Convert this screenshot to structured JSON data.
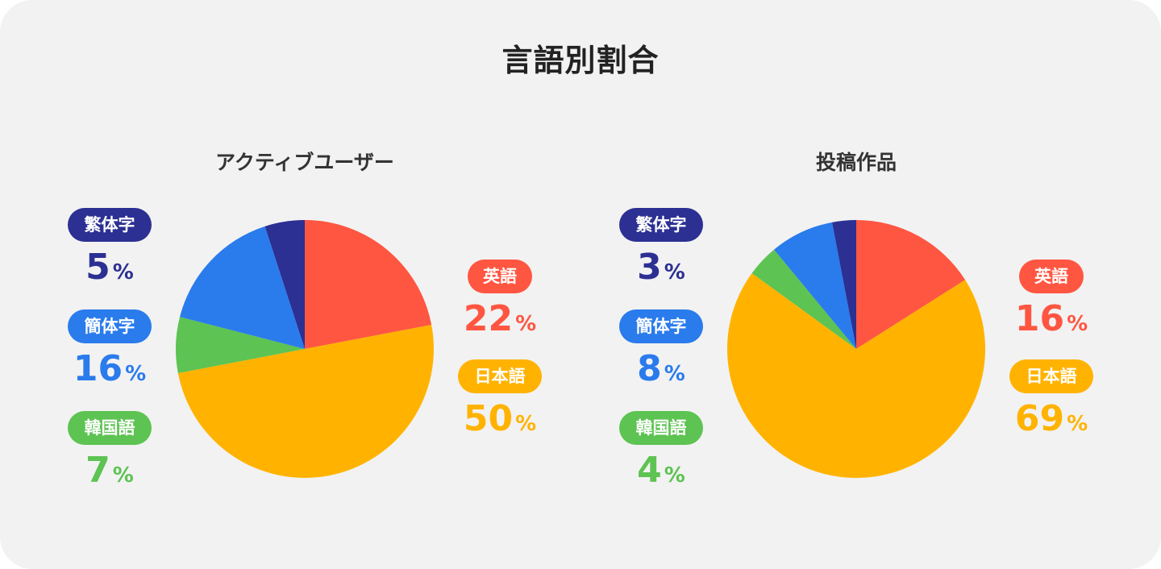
{
  "title": "言語別割合",
  "colors": {
    "英語": "#ff5641",
    "日本語": "#ffb300",
    "韓国語": "#5dc352",
    "簡体字": "#2a7bec",
    "繁体字": "#2c3092"
  },
  "chart_data": [
    {
      "type": "pie",
      "title": "アクティブユーザー",
      "slices": [
        {
          "label": "英語",
          "value": 22
        },
        {
          "label": "日本語",
          "value": 50
        },
        {
          "label": "韓国語",
          "value": 7
        },
        {
          "label": "簡体字",
          "value": 16
        },
        {
          "label": "繁体字",
          "value": 5
        }
      ],
      "unit": "%"
    },
    {
      "type": "pie",
      "title": "投稿作品",
      "slices": [
        {
          "label": "英語",
          "value": 16
        },
        {
          "label": "日本語",
          "value": 69
        },
        {
          "label": "韓国語",
          "value": 4
        },
        {
          "label": "簡体字",
          "value": 8
        },
        {
          "label": "繁体字",
          "value": 3
        }
      ],
      "unit": "%"
    }
  ]
}
